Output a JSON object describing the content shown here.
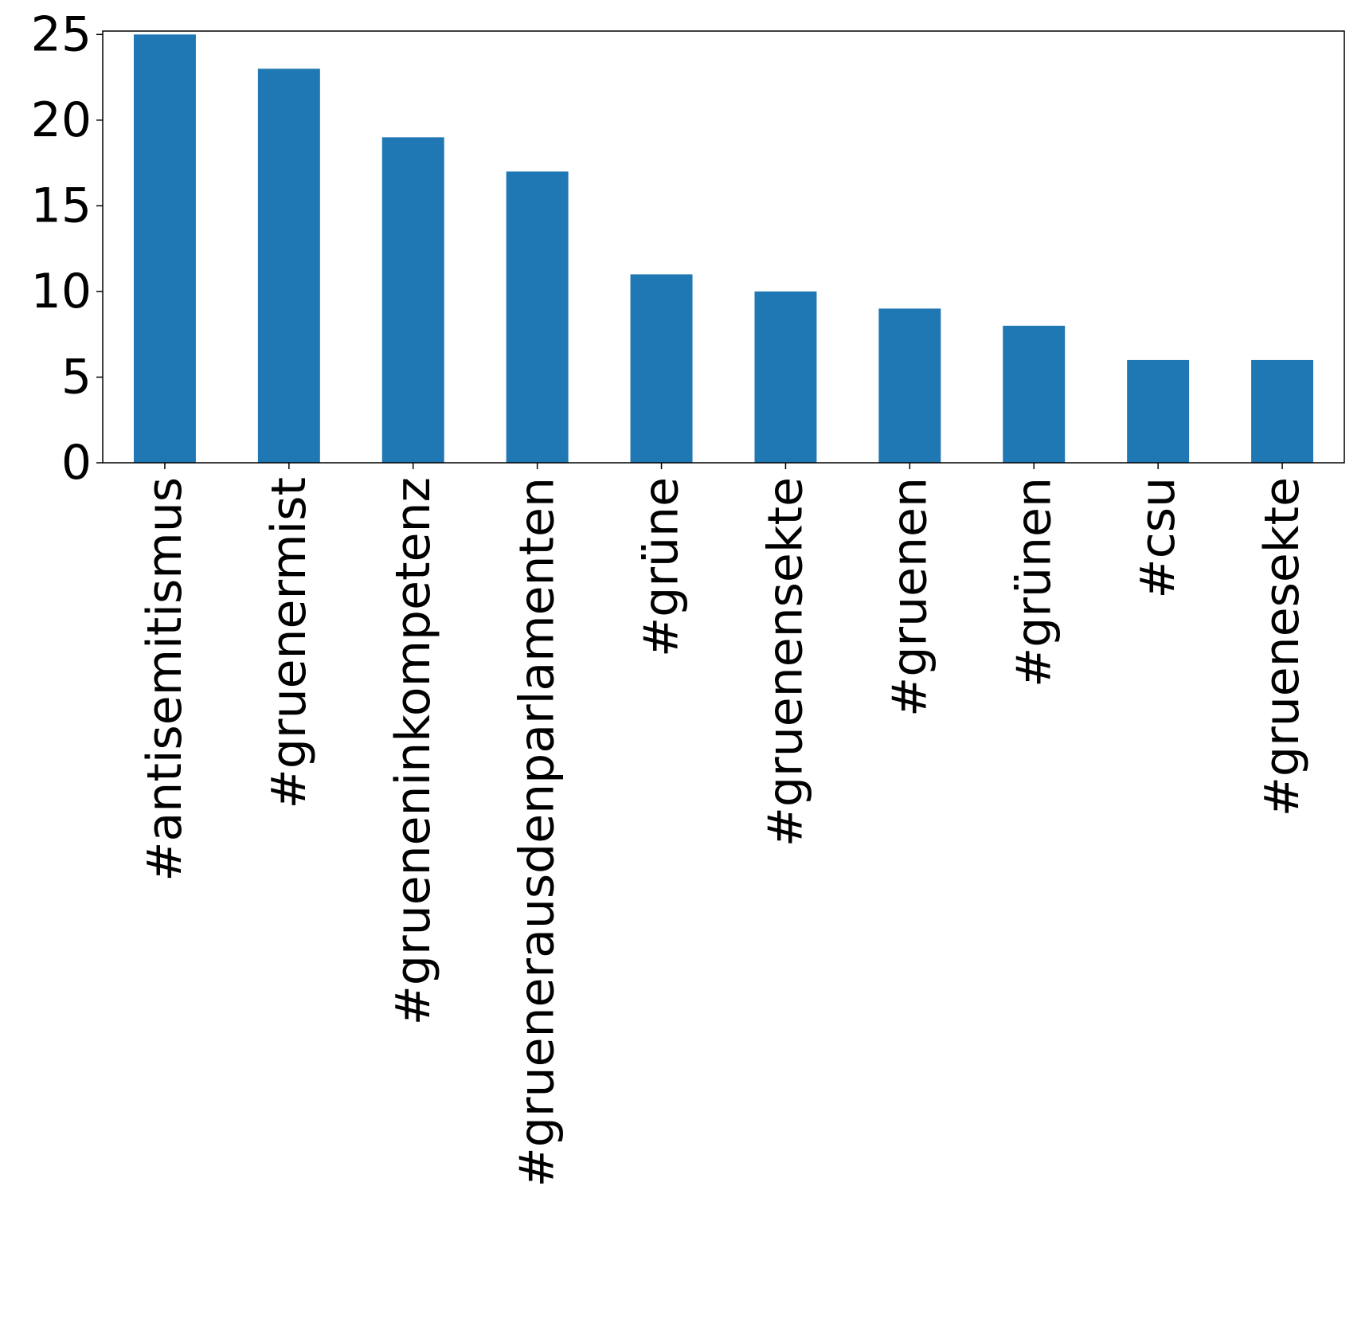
{
  "chart_data": {
    "type": "bar",
    "categories": [
      "#antisemitismus",
      "#gruenermist",
      "#grueneninkompetenz",
      "#grueneraus­denparlamenten",
      "#grüne",
      "#gruenensekte",
      "#gruenen",
      "#grünen",
      "#csu",
      "#gruenesekte"
    ],
    "values": [
      25,
      23,
      19,
      17,
      11,
      10,
      9,
      8,
      6,
      6
    ],
    "yticks": [
      "0",
      "5",
      "10",
      "15",
      "20",
      "25"
    ],
    "ylim": [
      0,
      25.2
    ],
    "title": "",
    "xlabel": "",
    "ylabel": "",
    "bar_color": "#1f77b4",
    "grid": false,
    "legend": "none"
  }
}
